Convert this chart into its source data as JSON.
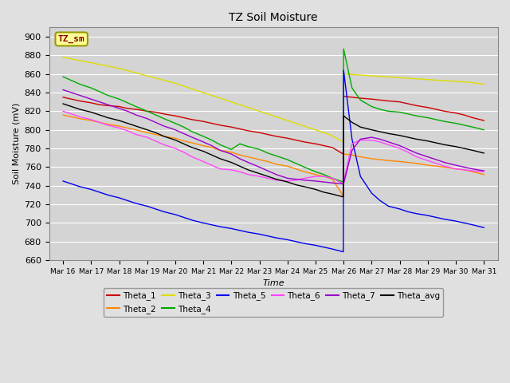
{
  "title": "TZ Soil Moisture",
  "xlabel": "Time",
  "ylabel": "Soil Moisture (mV)",
  "ylim": [
    660,
    910
  ],
  "background_color": "#e0e0e0",
  "plot_bg_color": "#d4d4d4",
  "annotation_text": "TZ_sm",
  "annotation_bg": "#ffff99",
  "annotation_border": "#999900",
  "x_tick_labels": [
    "Mar 16",
    "Mar 17",
    "Mar 18",
    "Mar 19",
    "Mar 20",
    "Mar 21",
    "Mar 22",
    "Mar 23",
    "Mar 24",
    "Mar 25",
    "Mar 26",
    "Mar 27",
    "Mar 28",
    "Mar 29",
    "Mar 30",
    "Mar 31"
  ],
  "series": [
    {
      "name": "Theta_1",
      "color": "#cc0000",
      "x": [
        0,
        0.3,
        0.6,
        1,
        1.3,
        1.6,
        2,
        2.3,
        2.6,
        3,
        3.3,
        3.6,
        4,
        4.3,
        4.6,
        5,
        5.3,
        5.6,
        6,
        6.3,
        6.6,
        7,
        7.3,
        7.6,
        8,
        8.3,
        8.6,
        9,
        9.3,
        9.6,
        9.99,
        10.0,
        10.3,
        10.6,
        11,
        11.3,
        11.6,
        12,
        12.3,
        12.6,
        13,
        13.3,
        13.6,
        14,
        14.3,
        14.6,
        15
      ],
      "y": [
        835,
        833,
        831,
        829,
        827,
        826,
        825,
        823,
        822,
        820,
        819,
        817,
        815,
        813,
        811,
        809,
        807,
        805,
        803,
        801,
        799,
        797,
        795,
        793,
        791,
        789,
        787,
        785,
        783,
        781,
        774,
        836,
        835,
        834,
        833,
        832,
        831,
        830,
        828,
        826,
        824,
        822,
        820,
        818,
        816,
        813,
        810
      ]
    },
    {
      "name": "Theta_2",
      "color": "#ff8800",
      "x": [
        0,
        0.3,
        0.6,
        1,
        1.3,
        1.6,
        2,
        2.3,
        2.6,
        3,
        3.3,
        3.6,
        4,
        4.3,
        4.6,
        5,
        5.3,
        5.6,
        6,
        6.3,
        6.6,
        7,
        7.3,
        7.6,
        8,
        8.3,
        8.6,
        9,
        9.3,
        9.6,
        9.99,
        10.0,
        10.3,
        10.6,
        11,
        11.3,
        11.6,
        12,
        12.3,
        12.6,
        13,
        13.3,
        13.6,
        14,
        14.3,
        14.6,
        15
      ],
      "y": [
        816,
        814,
        812,
        810,
        808,
        806,
        804,
        802,
        800,
        797,
        795,
        793,
        791,
        788,
        786,
        783,
        781,
        778,
        776,
        773,
        771,
        768,
        766,
        763,
        761,
        758,
        755,
        752,
        750,
        747,
        729,
        774,
        773,
        771,
        769,
        768,
        767,
        766,
        765,
        764,
        762,
        761,
        760,
        758,
        757,
        755,
        752
      ]
    },
    {
      "name": "Theta_3",
      "color": "#dddd00",
      "x": [
        0,
        0.5,
        1,
        1.5,
        2,
        2.5,
        3,
        3.5,
        4,
        4.5,
        5,
        5.5,
        6,
        6.5,
        7,
        7.5,
        8,
        8.5,
        9,
        9.5,
        9.99,
        10.0,
        10.5,
        11,
        11.5,
        12,
        12.5,
        13,
        13.5,
        14,
        14.5,
        15
      ],
      "y": [
        878,
        875,
        872,
        869,
        866,
        862,
        858,
        854,
        850,
        845,
        840,
        835,
        830,
        825,
        820,
        815,
        810,
        805,
        800,
        795,
        787,
        860,
        859,
        858,
        857,
        856,
        855,
        854,
        853,
        852,
        851,
        849
      ]
    },
    {
      "name": "Theta_4",
      "color": "#00aa00",
      "x": [
        0,
        0.3,
        0.6,
        1,
        1.3,
        1.6,
        2,
        2.3,
        2.6,
        3,
        3.3,
        3.6,
        4,
        4.3,
        4.6,
        5,
        5.3,
        5.6,
        6,
        6.3,
        6.6,
        7,
        7.3,
        7.6,
        8,
        8.3,
        8.6,
        9,
        9.3,
        9.6,
        9.99,
        10.0,
        10.3,
        10.6,
        11,
        11.3,
        11.6,
        12,
        12.3,
        12.6,
        13,
        13.3,
        13.6,
        14,
        14.3,
        14.6,
        15
      ],
      "y": [
        857,
        853,
        849,
        845,
        841,
        837,
        833,
        829,
        825,
        820,
        816,
        812,
        807,
        803,
        798,
        793,
        789,
        784,
        779,
        785,
        782,
        779,
        775,
        772,
        768,
        764,
        760,
        755,
        752,
        748,
        744,
        887,
        845,
        832,
        825,
        822,
        820,
        819,
        817,
        815,
        813,
        811,
        809,
        807,
        805,
        803,
        800
      ]
    },
    {
      "name": "Theta_5",
      "color": "#0000ee",
      "x": [
        0,
        0.3,
        0.6,
        1,
        1.3,
        1.6,
        2,
        2.3,
        2.6,
        3,
        3.3,
        3.6,
        4,
        4.3,
        4.6,
        5,
        5.3,
        5.6,
        6,
        6.3,
        6.6,
        7,
        7.3,
        7.6,
        8,
        8.3,
        8.6,
        9,
        9.3,
        9.6,
        9.99,
        10.0,
        10.3,
        10.6,
        11,
        11.3,
        11.6,
        12,
        12.3,
        12.6,
        13,
        13.3,
        13.6,
        14,
        14.3,
        14.6,
        15
      ],
      "y": [
        745,
        742,
        739,
        736,
        733,
        730,
        727,
        724,
        721,
        718,
        715,
        712,
        709,
        706,
        703,
        700,
        698,
        696,
        694,
        692,
        690,
        688,
        686,
        684,
        682,
        680,
        678,
        676,
        674,
        672,
        669,
        864,
        790,
        750,
        732,
        724,
        718,
        715,
        712,
        710,
        708,
        706,
        704,
        702,
        700,
        698,
        695
      ]
    },
    {
      "name": "Theta_6",
      "color": "#ff44ff",
      "x": [
        0,
        0.3,
        0.6,
        1,
        1.3,
        1.6,
        2,
        2.3,
        2.6,
        3,
        3.3,
        3.6,
        4,
        4.3,
        4.6,
        5,
        5.3,
        5.6,
        6,
        6.3,
        6.6,
        7,
        7.3,
        7.6,
        8,
        8.3,
        8.6,
        9,
        9.3,
        9.6,
        9.99,
        10.0,
        10.3,
        10.6,
        11,
        11.3,
        11.6,
        12,
        12.3,
        12.6,
        13,
        13.3,
        13.6,
        14,
        14.3,
        14.6,
        15
      ],
      "y": [
        820,
        817,
        814,
        811,
        808,
        805,
        802,
        799,
        795,
        792,
        788,
        784,
        780,
        776,
        771,
        766,
        762,
        758,
        757,
        755,
        752,
        750,
        748,
        746,
        745,
        746,
        748,
        750,
        750,
        748,
        742,
        744,
        785,
        789,
        789,
        787,
        784,
        780,
        776,
        771,
        767,
        764,
        761,
        758,
        757,
        756,
        755
      ]
    },
    {
      "name": "Theta_7",
      "color": "#9900cc",
      "x": [
        0,
        0.3,
        0.6,
        1,
        1.3,
        1.6,
        2,
        2.3,
        2.6,
        3,
        3.3,
        3.6,
        4,
        4.3,
        4.6,
        5,
        5.3,
        5.6,
        6,
        6.3,
        6.6,
        7,
        7.3,
        7.6,
        8,
        8.3,
        8.6,
        9,
        9.3,
        9.6,
        9.99,
        10.0,
        10.3,
        10.6,
        11,
        11.3,
        11.6,
        12,
        12.3,
        12.6,
        13,
        13.3,
        13.6,
        14,
        14.3,
        14.6,
        15
      ],
      "y": [
        843,
        840,
        837,
        833,
        830,
        827,
        823,
        820,
        816,
        812,
        808,
        804,
        800,
        796,
        792,
        787,
        783,
        778,
        774,
        769,
        765,
        760,
        756,
        752,
        748,
        747,
        746,
        745,
        744,
        743,
        742,
        742,
        778,
        790,
        792,
        790,
        787,
        783,
        779,
        775,
        771,
        768,
        765,
        762,
        760,
        758,
        756
      ]
    },
    {
      "name": "Theta_avg",
      "color": "#000000",
      "x": [
        0,
        0.3,
        0.6,
        1,
        1.3,
        1.6,
        2,
        2.3,
        2.6,
        3,
        3.3,
        3.6,
        4,
        4.3,
        4.6,
        5,
        5.3,
        5.6,
        6,
        6.3,
        6.6,
        7,
        7.3,
        7.6,
        8,
        8.3,
        8.6,
        9,
        9.3,
        9.6,
        9.99,
        10.0,
        10.3,
        10.6,
        11,
        11.3,
        11.6,
        12,
        12.3,
        12.6,
        13,
        13.3,
        13.6,
        14,
        14.3,
        14.6,
        15
      ],
      "y": [
        828,
        825,
        822,
        819,
        816,
        813,
        810,
        807,
        804,
        800,
        797,
        793,
        789,
        785,
        781,
        777,
        773,
        769,
        765,
        761,
        757,
        753,
        750,
        747,
        744,
        741,
        739,
        736,
        733,
        731,
        728,
        815,
        808,
        803,
        800,
        798,
        796,
        794,
        792,
        790,
        788,
        786,
        784,
        782,
        780,
        778,
        775
      ]
    }
  ],
  "legend": [
    {
      "name": "Theta_1",
      "color": "#cc0000"
    },
    {
      "name": "Theta_2",
      "color": "#ff8800"
    },
    {
      "name": "Theta_3",
      "color": "#dddd00"
    },
    {
      "name": "Theta_4",
      "color": "#00aa00"
    },
    {
      "name": "Theta_5",
      "color": "#0000ee"
    },
    {
      "name": "Theta_6",
      "color": "#ff44ff"
    },
    {
      "name": "Theta_7",
      "color": "#9900cc"
    },
    {
      "name": "Theta_avg",
      "color": "#000000"
    }
  ]
}
